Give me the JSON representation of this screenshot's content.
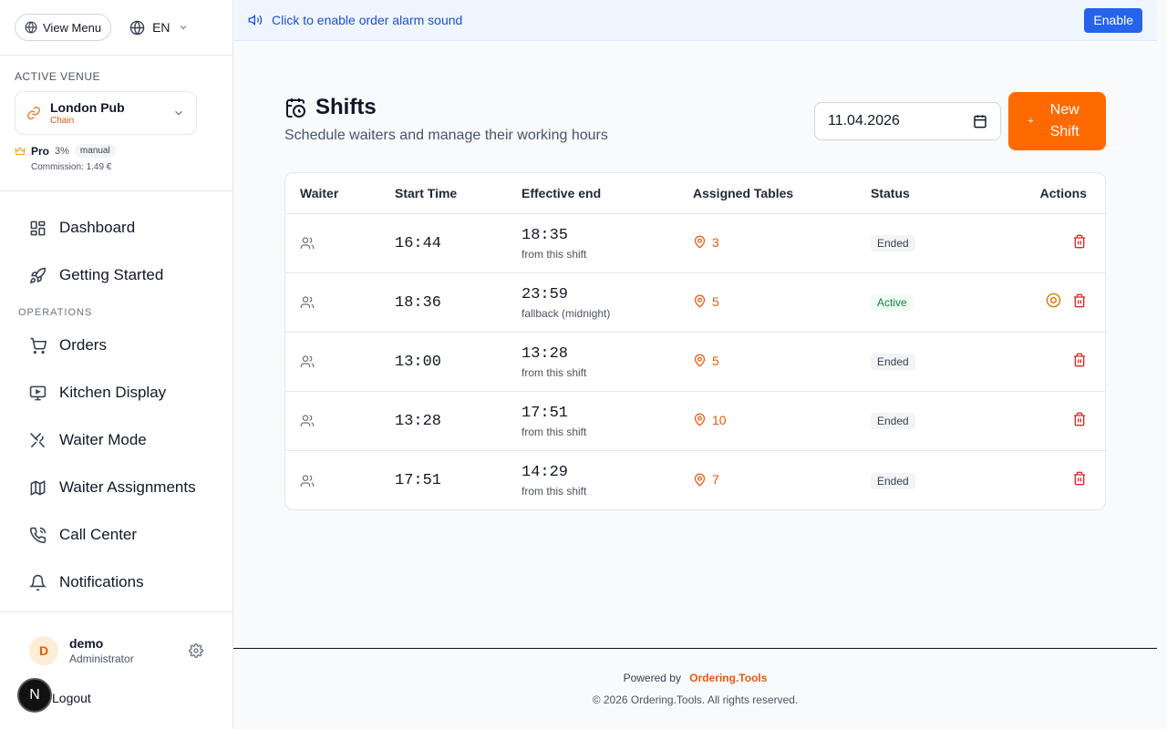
{
  "sidebar": {
    "view_menu": "View Menu",
    "language": "EN",
    "venue_label": "ACTIVE VENUE",
    "venue": {
      "name": "London Pub",
      "type": "Chain"
    },
    "plan": {
      "name": "Pro",
      "percent": "3%",
      "badge": "manual"
    },
    "commission": "Commission: 1.49 €",
    "nav_top": [
      {
        "label": "Dashboard",
        "icon": "grid-icon"
      },
      {
        "label": "Getting Started",
        "icon": "rocket-icon"
      }
    ],
    "section_operations": "OPERATIONS",
    "nav_ops": [
      {
        "label": "Orders",
        "icon": "cart-icon"
      },
      {
        "label": "Kitchen Display",
        "icon": "monitor-icon"
      },
      {
        "label": "Waiter Mode",
        "icon": "utensils-icon"
      },
      {
        "label": "Waiter Assignments",
        "icon": "map-icon"
      },
      {
        "label": "Call Center",
        "icon": "phone-icon"
      },
      {
        "label": "Notifications",
        "icon": "bell-icon"
      }
    ],
    "user": {
      "initial": "D",
      "name": "demo",
      "role": "Administrator"
    },
    "logout": "Logout",
    "n_badge": "N"
  },
  "banner": {
    "text": "Click to enable order alarm sound",
    "button": "Enable"
  },
  "page": {
    "title": "Shifts",
    "subtitle": "Schedule waiters and manage their working hours",
    "date": "11.04.2026",
    "new_shift": "New Shift",
    "new_shift_plus": "+"
  },
  "table": {
    "headers": [
      "Waiter",
      "Start Time",
      "Effective end",
      "Assigned Tables",
      "Status",
      "Actions"
    ],
    "rows": [
      {
        "start": "16:44",
        "end": "18:35",
        "end_note": "from this shift",
        "tables": "3",
        "status": "Ended",
        "active": false
      },
      {
        "start": "18:36",
        "end": "23:59",
        "end_note": "fallback (midnight)",
        "tables": "5",
        "status": "Active",
        "active": true
      },
      {
        "start": "13:00",
        "end": "13:28",
        "end_note": "from this shift",
        "tables": "5",
        "status": "Ended",
        "active": false
      },
      {
        "start": "13:28",
        "end": "17:51",
        "end_note": "from this shift",
        "tables": "10",
        "status": "Ended",
        "active": false
      },
      {
        "start": "17:51",
        "end": "14:29",
        "end_note": "from this shift",
        "tables": "7",
        "status": "Ended",
        "active": false
      }
    ]
  },
  "footer": {
    "powered_by": "Powered by",
    "brand": "Ordering.Tools",
    "copyright": "© 2026 Ordering.Tools. All rights reserved."
  },
  "colors": {
    "accent": "#ff6a00",
    "link": "#2563eb",
    "danger": "#dc2626",
    "success": "#15803d"
  }
}
